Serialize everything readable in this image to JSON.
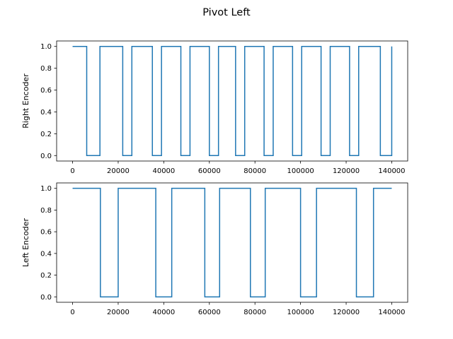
{
  "figure": {
    "title": "Pivot Left"
  },
  "colors": {
    "series": "#1f77b4",
    "axis": "#000000",
    "background": "#ffffff"
  },
  "chart_data": [
    {
      "type": "line",
      "step": true,
      "title": "",
      "xlabel": "",
      "ylabel": "Right Encoder",
      "xlim": [
        -7000,
        147000
      ],
      "ylim": [
        -0.05,
        1.05
      ],
      "xticks": [
        0,
        20000,
        40000,
        60000,
        80000,
        100000,
        120000,
        140000
      ],
      "xtick_labels": [
        "0",
        "20000",
        "40000",
        "60000",
        "80000",
        "100000",
        "120000",
        "140000"
      ],
      "yticks": [
        0.0,
        0.2,
        0.4,
        0.6,
        0.8,
        1.0
      ],
      "ytick_labels": [
        "0.0",
        "0.2",
        "0.4",
        "0.6",
        "0.8",
        "1.0"
      ],
      "grid": false,
      "series": [
        {
          "name": "",
          "x": [
            0,
            6200,
            6200,
            12000,
            12000,
            22000,
            22000,
            26000,
            26000,
            35000,
            35000,
            39000,
            39000,
            47500,
            47500,
            51500,
            51500,
            60000,
            60000,
            64000,
            64000,
            71500,
            71500,
            75500,
            75500,
            84000,
            84000,
            88000,
            88000,
            96500,
            96500,
            100500,
            100500,
            109000,
            109000,
            113000,
            113000,
            121500,
            121500,
            125500,
            125500,
            135000,
            135000,
            140000,
            140000
          ],
          "y": [
            1,
            1,
            0,
            0,
            1,
            1,
            0,
            0,
            1,
            1,
            0,
            0,
            1,
            1,
            0,
            0,
            1,
            1,
            0,
            0,
            1,
            1,
            0,
            0,
            1,
            1,
            0,
            0,
            1,
            1,
            0,
            0,
            1,
            1,
            0,
            0,
            1,
            1,
            0,
            0,
            1,
            1,
            0,
            0,
            1
          ]
        }
      ]
    },
    {
      "type": "line",
      "step": true,
      "title": "",
      "xlabel": "",
      "ylabel": "Left Encoder",
      "xlim": [
        -7000,
        147000
      ],
      "ylim": [
        -0.05,
        1.05
      ],
      "xticks": [
        0,
        20000,
        40000,
        60000,
        80000,
        100000,
        120000,
        140000
      ],
      "xtick_labels": [
        "0",
        "20000",
        "40000",
        "60000",
        "80000",
        "100000",
        "120000",
        "140000"
      ],
      "yticks": [
        0.0,
        0.2,
        0.4,
        0.6,
        0.8,
        1.0
      ],
      "ytick_labels": [
        "0.0",
        "0.2",
        "0.4",
        "0.6",
        "0.8",
        "1.0"
      ],
      "grid": false,
      "series": [
        {
          "name": "",
          "x": [
            0,
            12200,
            12200,
            20000,
            20000,
            36500,
            36500,
            43500,
            43500,
            58000,
            58000,
            64500,
            64500,
            78000,
            78000,
            84500,
            84500,
            100000,
            100000,
            107000,
            107000,
            124500,
            124500,
            132000,
            132000,
            140000
          ],
          "y": [
            1,
            1,
            0,
            0,
            1,
            1,
            0,
            0,
            1,
            1,
            0,
            0,
            1,
            1,
            0,
            0,
            1,
            1,
            0,
            0,
            1,
            1,
            0,
            0,
            1,
            1
          ]
        }
      ]
    }
  ]
}
